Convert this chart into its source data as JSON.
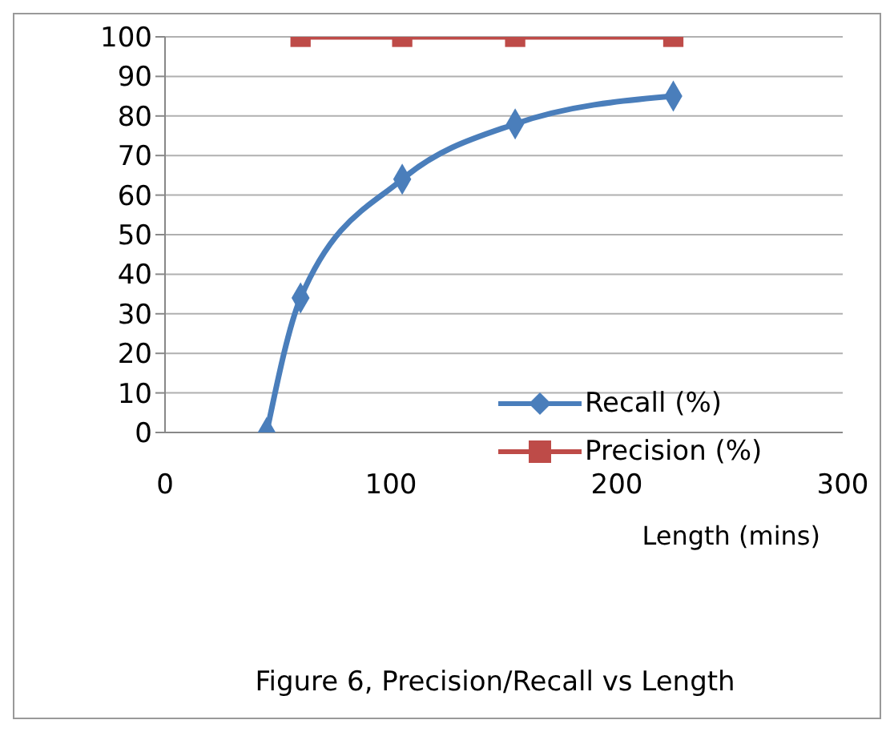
{
  "chart_data": {
    "type": "line",
    "title": "Figure 6, Precision/Recall vs Length",
    "xlabel": "Length (mins)",
    "xlim": [
      0,
      300
    ],
    "xticks": [
      0,
      100,
      200,
      300
    ],
    "ylim": [
      0,
      100
    ],
    "yticks": [
      0,
      10,
      20,
      30,
      40,
      50,
      60,
      70,
      80,
      90,
      100
    ],
    "grid": "y",
    "legend": "bottom right",
    "line_style": "solid",
    "series": [
      {
        "name": "Recall (%)",
        "color": "#4a7ebb",
        "marker": "diamond",
        "x": [
          45,
          60,
          105,
          155,
          225
        ],
        "values": [
          0,
          34,
          64,
          78,
          85
        ]
      },
      {
        "name": "Precision (%)",
        "color": "#be4b48",
        "marker": "square",
        "x": [
          60,
          105,
          155,
          225
        ],
        "values": [
          100,
          100,
          100,
          100
        ]
      }
    ]
  }
}
